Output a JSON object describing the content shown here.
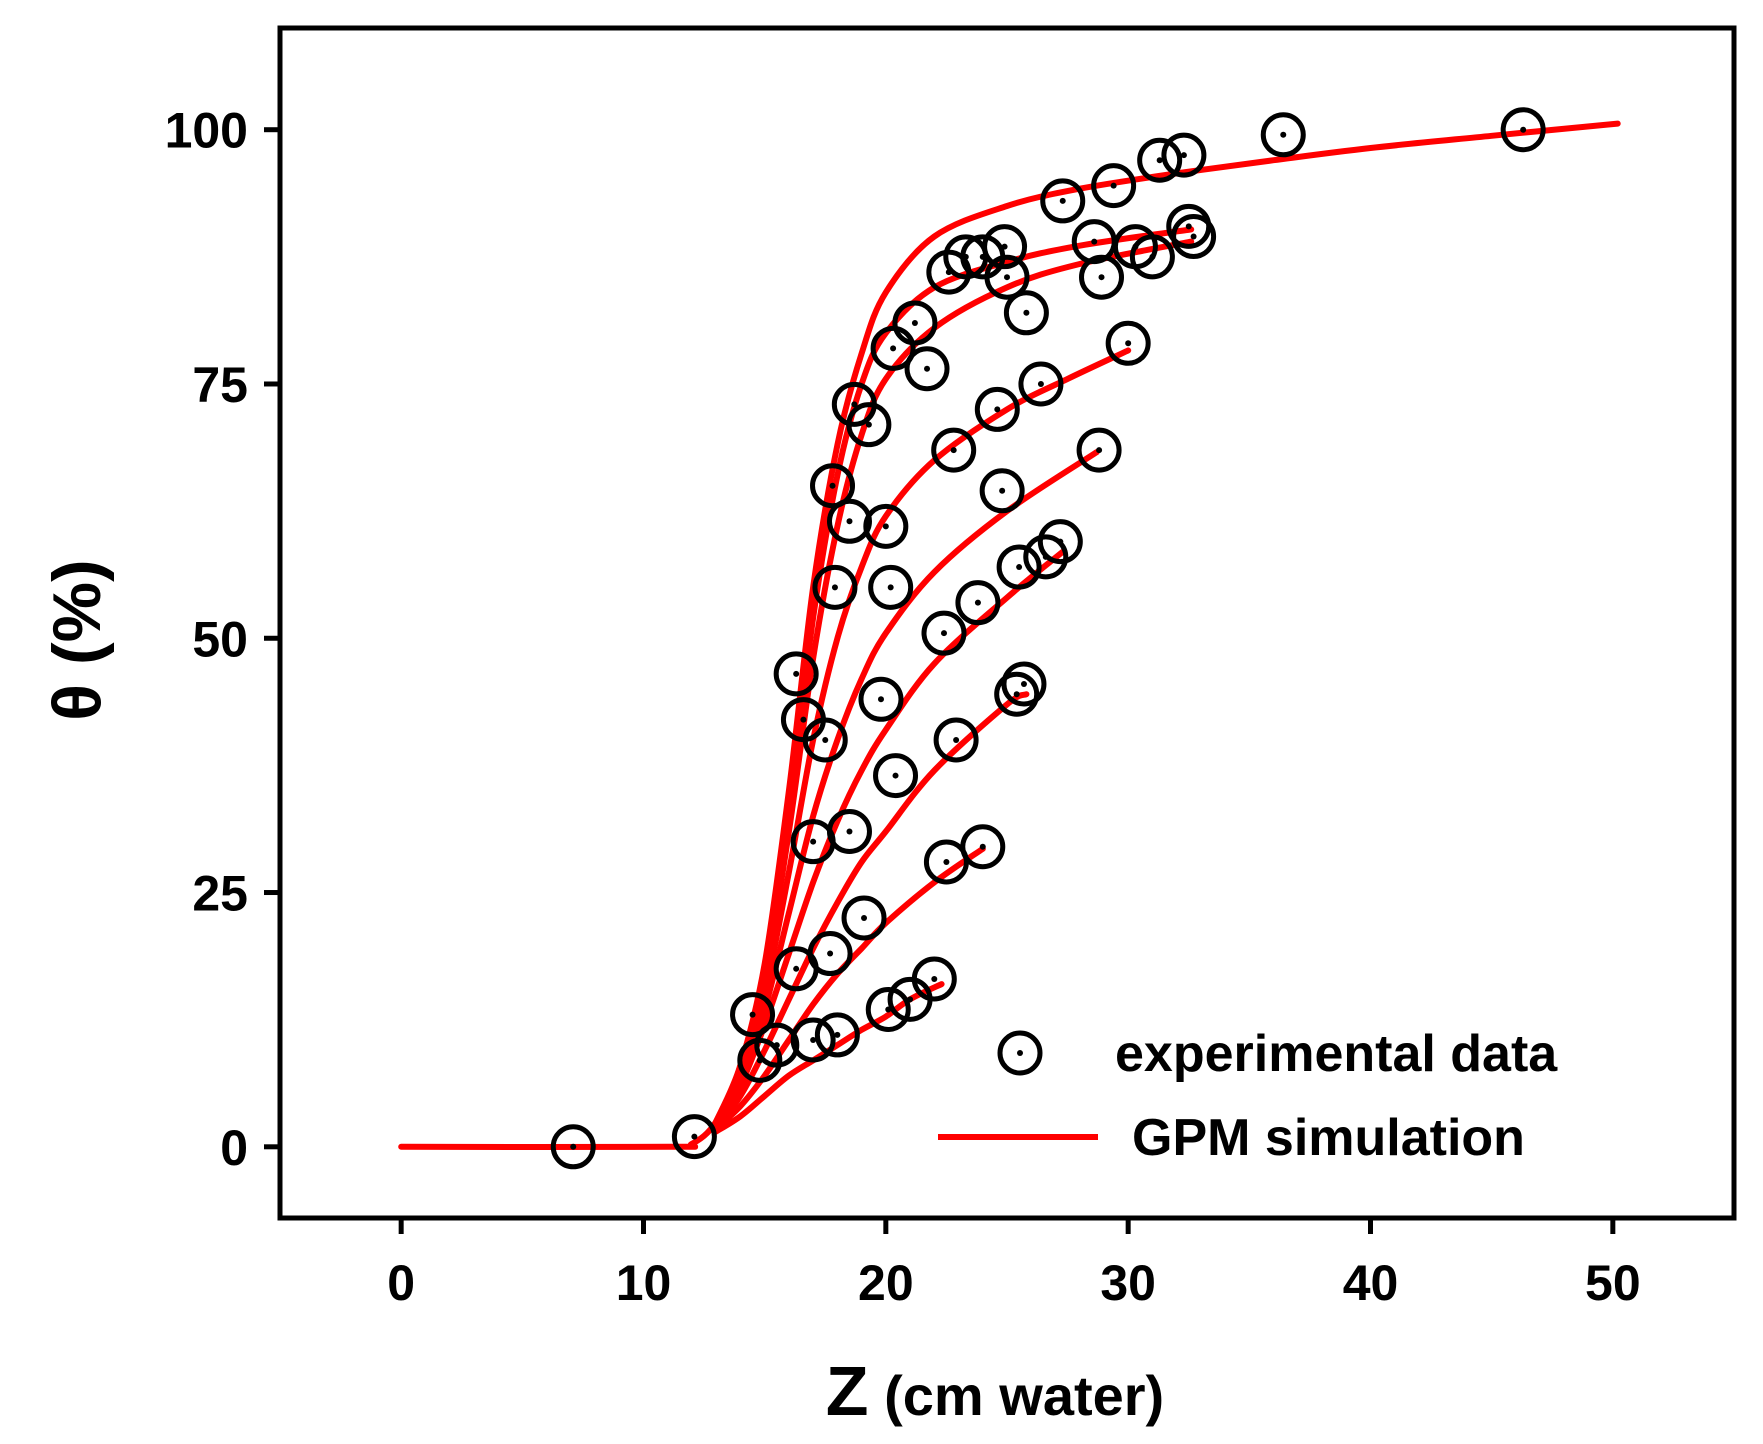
{
  "chart_data": {
    "type": "scatter",
    "title": "",
    "xlabel_main": "Z",
    "xlabel_rest": " (cm water)",
    "ylabel": "θ (%)",
    "xlim": [
      -5,
      55
    ],
    "ylim": [
      -7,
      110
    ],
    "xticks": [
      0,
      10,
      20,
      30,
      40,
      50
    ],
    "yticks": [
      0,
      25,
      50,
      75,
      100
    ],
    "xtick_labels": [
      "0",
      "10",
      "20",
      "30",
      "40",
      "50"
    ],
    "ytick_labels": [
      "0",
      "25",
      "50",
      "75",
      "100"
    ],
    "grid": false,
    "legend_position": "bottom-right",
    "colors": {
      "curve": "#ff0000",
      "marker": "#000000",
      "axes": "#000000"
    },
    "legend": [
      {
        "label": "experimental data",
        "kind": "marker"
      },
      {
        "label": "GPM simulation",
        "kind": "line"
      }
    ],
    "series": [
      {
        "name": "experimental data",
        "kind": "scatter",
        "points": [
          [
            7.1,
            0
          ],
          [
            12.1,
            1
          ],
          [
            14.5,
            13
          ],
          [
            14.8,
            8.5
          ],
          [
            15.5,
            10
          ],
          [
            16.3,
            17.5
          ],
          [
            16.3,
            46.5
          ],
          [
            16.6,
            42
          ],
          [
            17.0,
            30
          ],
          [
            17.0,
            10.5
          ],
          [
            17.5,
            40
          ],
          [
            17.7,
            19
          ],
          [
            17.8,
            65
          ],
          [
            17.9,
            55
          ],
          [
            18.0,
            11
          ],
          [
            18.5,
            61.5
          ],
          [
            18.5,
            31
          ],
          [
            18.7,
            73
          ],
          [
            19.1,
            22.5
          ],
          [
            19.3,
            71
          ],
          [
            19.8,
            44
          ],
          [
            20.0,
            61
          ],
          [
            20.1,
            13.5
          ],
          [
            20.2,
            55
          ],
          [
            20.3,
            78.5
          ],
          [
            20.4,
            36.5
          ],
          [
            21.0,
            14.5
          ],
          [
            21.2,
            81
          ],
          [
            21.7,
            76.5
          ],
          [
            22.0,
            16.5
          ],
          [
            22.4,
            50.5
          ],
          [
            22.5,
            28
          ],
          [
            22.6,
            86
          ],
          [
            22.8,
            68.5
          ],
          [
            22.9,
            40
          ],
          [
            23.3,
            87.5
          ],
          [
            23.8,
            53.5
          ],
          [
            24.0,
            29.5
          ],
          [
            24.0,
            87.5
          ],
          [
            24.6,
            72.5
          ],
          [
            24.8,
            64.5
          ],
          [
            24.9,
            88.5
          ],
          [
            25.0,
            85.5
          ],
          [
            25.4,
            44.5
          ],
          [
            25.5,
            57
          ],
          [
            25.7,
            45.5
          ],
          [
            25.8,
            82
          ],
          [
            26.4,
            75
          ],
          [
            26.6,
            58
          ],
          [
            27.2,
            59.5
          ],
          [
            27.3,
            93
          ],
          [
            28.6,
            89
          ],
          [
            28.8,
            68.5
          ],
          [
            28.9,
            85.5
          ],
          [
            29.4,
            94.5
          ],
          [
            30.0,
            79
          ],
          [
            30.3,
            88.5
          ],
          [
            31.0,
            87.5
          ],
          [
            31.3,
            97
          ],
          [
            32.3,
            97.5
          ],
          [
            32.5,
            90.5
          ],
          [
            32.7,
            89.5
          ],
          [
            36.4,
            99.5
          ],
          [
            46.3,
            100
          ]
        ]
      },
      {
        "name": "GPM simulation 1",
        "kind": "line",
        "points": [
          [
            0,
            0
          ],
          [
            11,
            0
          ],
          [
            12,
            0.3
          ],
          [
            13,
            2.5
          ],
          [
            14,
            8
          ],
          [
            15,
            18
          ],
          [
            16,
            35
          ],
          [
            17,
            55
          ],
          [
            18,
            69
          ],
          [
            19,
            78
          ],
          [
            20,
            84
          ],
          [
            22,
            89.5
          ],
          [
            25,
            92.5
          ],
          [
            28,
            94.2
          ],
          [
            32,
            95.7
          ],
          [
            36,
            97
          ],
          [
            40,
            98.2
          ],
          [
            45,
            99.4
          ],
          [
            50.2,
            100.6
          ]
        ]
      },
      {
        "name": "GPM simulation 2",
        "kind": "line",
        "points": [
          [
            13,
            2.5
          ],
          [
            14,
            8
          ],
          [
            15,
            17.5
          ],
          [
            16,
            33
          ],
          [
            17,
            52
          ],
          [
            18,
            66
          ],
          [
            19,
            75
          ],
          [
            20,
            80
          ],
          [
            22,
            84.5
          ],
          [
            25,
            87
          ],
          [
            28,
            88.6
          ],
          [
            32.6,
            90.2
          ]
        ]
      },
      {
        "name": "GPM simulation 3",
        "kind": "line",
        "points": [
          [
            13,
            2.5
          ],
          [
            14,
            7.5
          ],
          [
            15,
            16.5
          ],
          [
            16,
            31
          ],
          [
            17,
            48
          ],
          [
            18,
            61
          ],
          [
            19,
            70
          ],
          [
            20,
            75.5
          ],
          [
            22,
            80.5
          ],
          [
            25,
            84.5
          ],
          [
            28,
            86.8
          ],
          [
            32.6,
            89
          ]
        ]
      },
      {
        "name": "GPM simulation 4",
        "kind": "line",
        "points": [
          [
            13,
            2.5
          ],
          [
            14,
            7
          ],
          [
            15,
            15
          ],
          [
            16,
            27
          ],
          [
            17,
            40
          ],
          [
            18,
            50
          ],
          [
            19,
            57
          ],
          [
            20,
            62
          ],
          [
            22,
            67.5
          ],
          [
            25,
            72.5
          ],
          [
            27.5,
            75.5
          ],
          [
            30,
            78.3
          ]
        ]
      },
      {
        "name": "GPM simulation 5",
        "kind": "line",
        "points": [
          [
            13,
            2.3
          ],
          [
            14,
            6.5
          ],
          [
            15,
            13.5
          ],
          [
            16,
            23
          ],
          [
            17,
            32.5
          ],
          [
            18,
            40
          ],
          [
            19,
            46
          ],
          [
            20,
            50.5
          ],
          [
            22,
            56.5
          ],
          [
            25,
            62.5
          ],
          [
            28.7,
            68.3
          ]
        ]
      },
      {
        "name": "GPM simulation 6",
        "kind": "line",
        "points": [
          [
            13,
            2.2
          ],
          [
            14,
            6
          ],
          [
            15,
            12
          ],
          [
            16,
            19
          ],
          [
            17,
            26
          ],
          [
            18,
            32
          ],
          [
            19,
            37
          ],
          [
            20,
            41
          ],
          [
            22,
            47.5
          ],
          [
            25,
            54
          ],
          [
            27.3,
            58.5
          ]
        ]
      },
      {
        "name": "GPM simulation 7",
        "kind": "line",
        "points": [
          [
            13,
            2
          ],
          [
            14,
            5
          ],
          [
            15,
            9.5
          ],
          [
            16,
            14.5
          ],
          [
            17,
            19.5
          ],
          [
            18,
            24
          ],
          [
            19,
            28
          ],
          [
            20,
            31
          ],
          [
            22,
            37
          ],
          [
            25,
            43.5
          ],
          [
            25.8,
            44.5
          ]
        ]
      },
      {
        "name": "GPM simulation 8",
        "kind": "line",
        "points": [
          [
            13,
            1.8
          ],
          [
            14,
            4
          ],
          [
            15,
            7
          ],
          [
            16,
            10.5
          ],
          [
            17,
            14
          ],
          [
            18,
            17
          ],
          [
            19,
            19.5
          ],
          [
            20,
            22
          ],
          [
            22,
            26
          ],
          [
            24,
            29.3
          ]
        ]
      },
      {
        "name": "GPM simulation 9",
        "kind": "line",
        "points": [
          [
            13,
            1.5
          ],
          [
            14,
            3
          ],
          [
            15,
            5
          ],
          [
            16,
            7
          ],
          [
            17,
            8.5
          ],
          [
            18,
            10
          ],
          [
            19,
            11.5
          ],
          [
            20,
            12.8
          ],
          [
            21,
            14.5
          ],
          [
            22.3,
            16
          ]
        ]
      }
    ]
  }
}
